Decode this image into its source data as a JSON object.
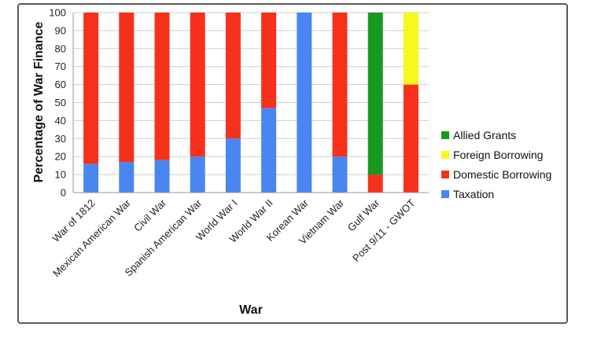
{
  "chart_data": {
    "type": "bar",
    "stacked": true,
    "xlabel": "War",
    "ylabel": "Percentage of War Finance",
    "ylim": [
      0,
      100
    ],
    "yticks": [
      0,
      10,
      20,
      30,
      40,
      50,
      60,
      70,
      80,
      90,
      100
    ],
    "grid": true,
    "legend_position": "right",
    "categories": [
      "War of 1812",
      "Mexican American War",
      "Civil War",
      "Spanish American War",
      "World War I",
      "World War II",
      "Korean War",
      "Vietnam War",
      "Gulf War",
      "Post 9/11 - GWOT"
    ],
    "series": [
      {
        "name": "Taxation",
        "color": "#4a86f0",
        "values": [
          16,
          17,
          18,
          20,
          30,
          47,
          100,
          20,
          0,
          0
        ]
      },
      {
        "name": "Domestic Borrowing",
        "color": "#f5311c",
        "values": [
          84,
          83,
          82,
          80,
          70,
          53,
          0,
          80,
          10,
          60
        ]
      },
      {
        "name": "Foreign Borrowing",
        "color": "#f8f81c",
        "values": [
          0,
          0,
          0,
          0,
          0,
          0,
          0,
          0,
          0,
          40
        ]
      },
      {
        "name": "Allied Grants",
        "color": "#17991f",
        "values": [
          0,
          0,
          0,
          0,
          0,
          0,
          0,
          0,
          90,
          0
        ]
      }
    ],
    "legend_order": [
      "Allied Grants",
      "Foreign Borrowing",
      "Domestic Borrowing",
      "Taxation"
    ]
  }
}
